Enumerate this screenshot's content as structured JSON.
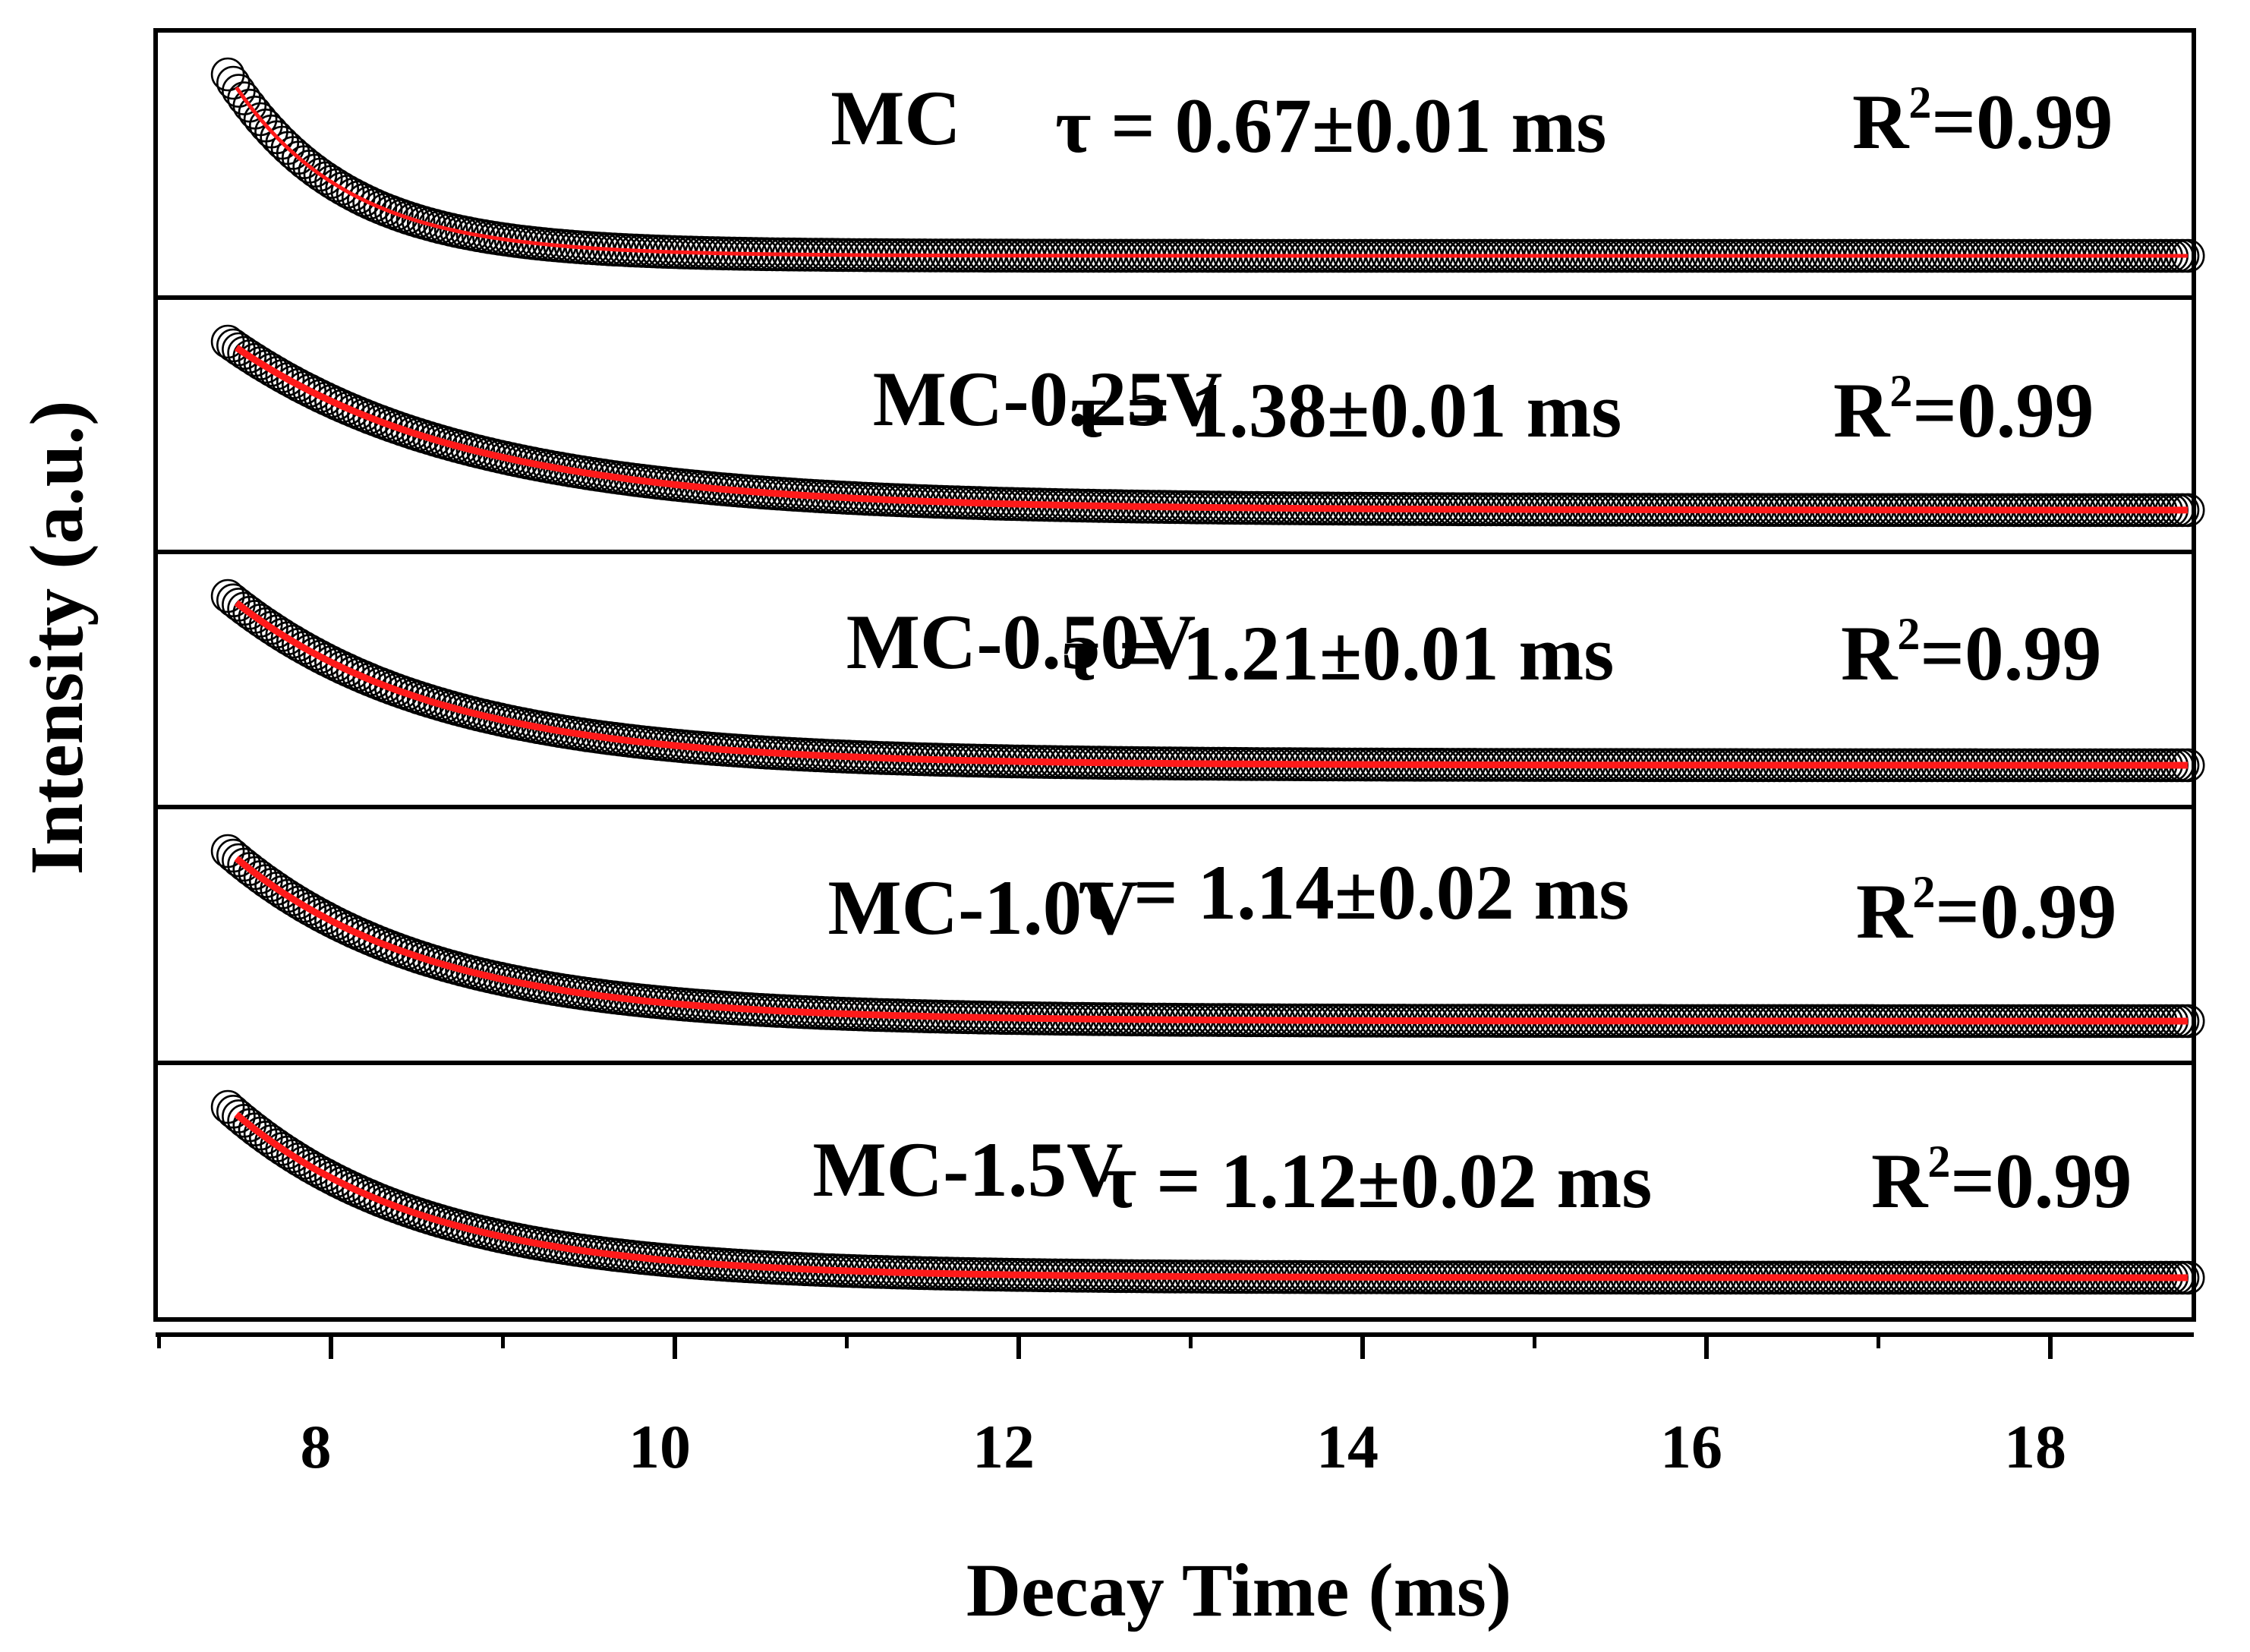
{
  "chart_data": {
    "type": "scatter",
    "title": "",
    "xlabel": "Decay Time (ms)",
    "ylabel": "Intensity (a.u.)",
    "xlim": [
      7.0,
      19.2
    ],
    "xticks": [
      8,
      10,
      12,
      14,
      16,
      18
    ],
    "xtick_labels": [
      "8",
      "10",
      "12",
      "14",
      "16",
      "18"
    ],
    "x_minor_ticks": [
      7,
      9,
      11,
      13,
      15,
      17,
      19
    ],
    "x_range": [
      7.4,
      18.8
    ],
    "markers": "open circles (data)",
    "fit_line_color": "#ff1a1a",
    "point_edge_color": "#000000",
    "panels": [
      {
        "sample": "MC",
        "tau_label": "τ = 0.67±0.01 ms",
        "tau_ms": 0.67,
        "tau_err_ms": 0.01,
        "r2_prefix": "R",
        "r2_exp": "2",
        "r2_value": "=0.99"
      },
      {
        "sample": "MC-0.25V",
        "tau_label": "τ = 1.38±0.01 ms",
        "tau_ms": 1.38,
        "tau_err_ms": 0.01,
        "r2_prefix": "R",
        "r2_exp": "2",
        "r2_value": "=0.99"
      },
      {
        "sample": "MC-0.50V",
        "tau_label": "τ = 1.21±0.01 ms",
        "tau_ms": 1.21,
        "tau_err_ms": 0.01,
        "r2_prefix": "R",
        "r2_exp": "2",
        "r2_value": "=0.99"
      },
      {
        "sample": "MC-1.0V",
        "tau_label": "τ = 1.14±0.02 ms",
        "tau_ms": 1.14,
        "tau_err_ms": 0.02,
        "r2_prefix": "R",
        "r2_exp": "2",
        "r2_value": "=0.99"
      },
      {
        "sample": "MC-1.5V",
        "tau_label": "τ = 1.12±0.02 ms",
        "tau_ms": 1.12,
        "tau_err_ms": 0.02,
        "r2_prefix": "R",
        "r2_exp": "2",
        "r2_value": "=0.99"
      }
    ]
  }
}
